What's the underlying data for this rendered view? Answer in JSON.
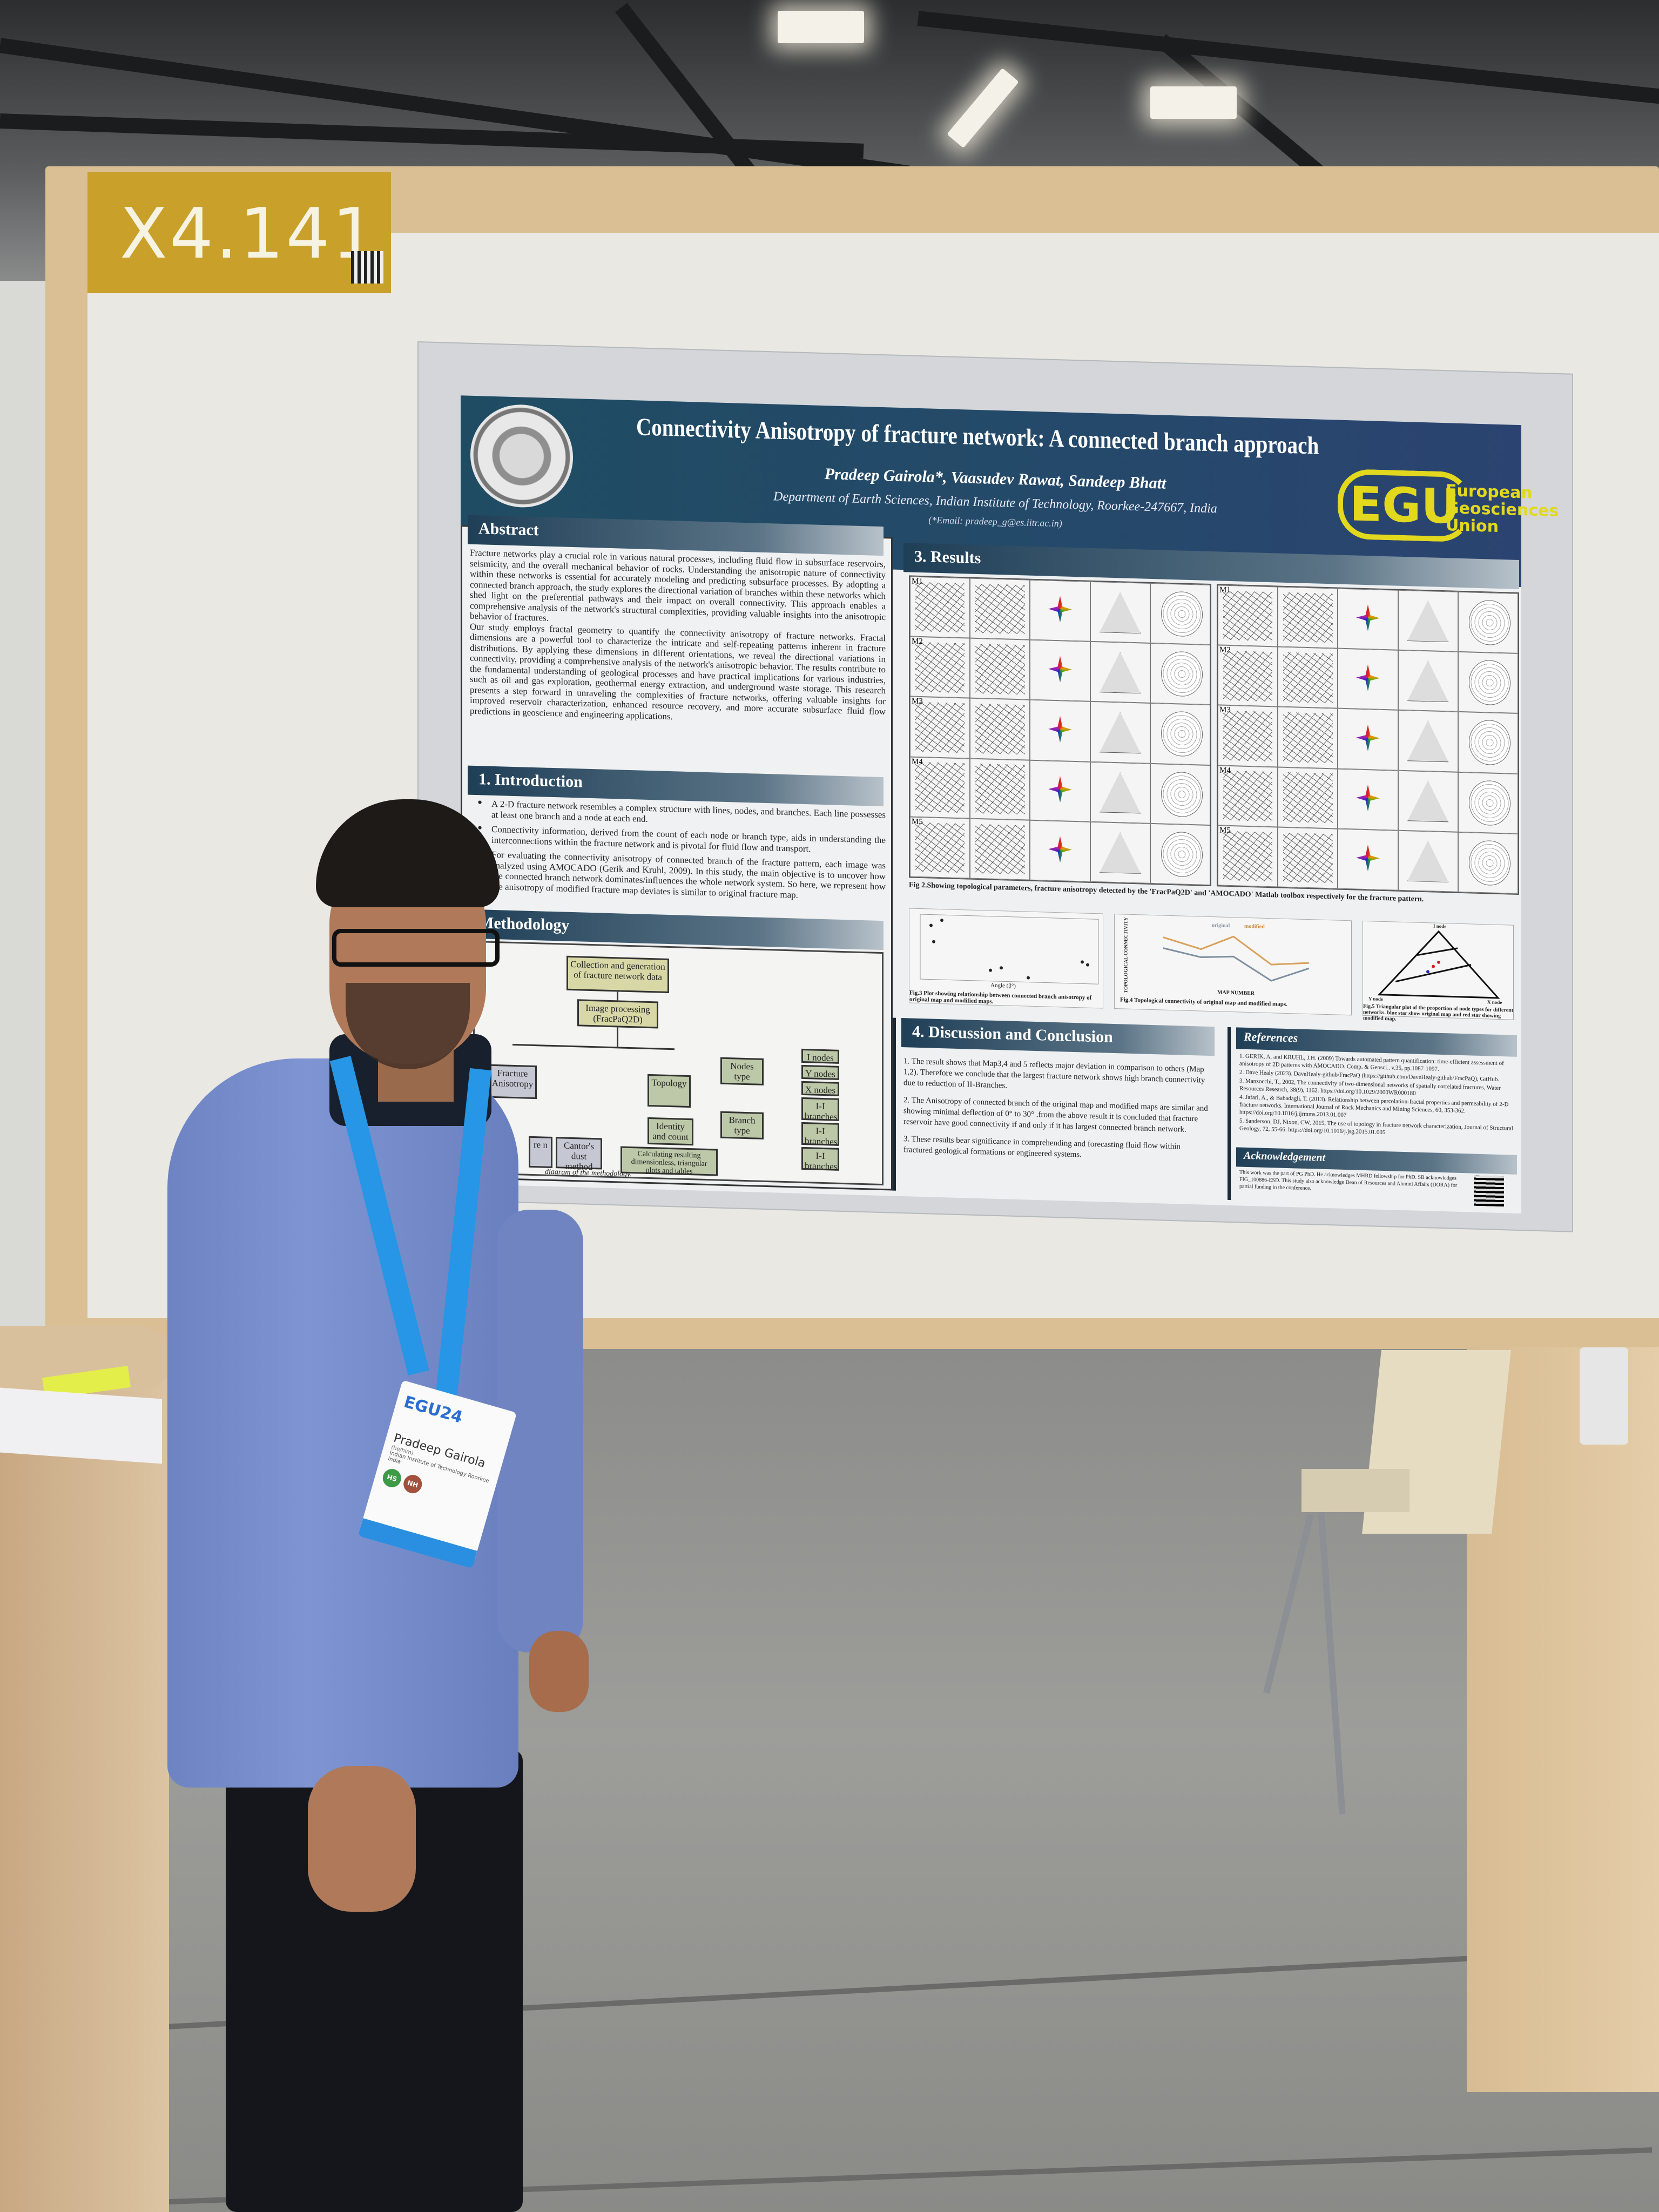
{
  "booth_sign": {
    "label": "X4.141"
  },
  "poster": {
    "title": "Connectivity Anisotropy of fracture network: A connected branch approach",
    "authors": "Pradeep Gairola*, Vaasudev Rawat, Sandeep Bhatt",
    "affiliation": "Department of Earth Sciences, Indian Institute of Technology, Roorkee-247667, India",
    "email": "(*Email: pradeep_g@es.iitr.ac.in)",
    "egu_logo": {
      "mark": "EGU",
      "name": "European Geosciences Union",
      "color": "#e2d81e"
    },
    "abstract": {
      "heading": "Abstract",
      "paragraphs": [
        "Fracture networks play a crucial role in various natural processes, including fluid flow in subsurface reservoirs, seismicity, and the overall mechanical behavior of rocks. Understanding the anisotropic nature of connectivity within these networks is essential for accurately modeling and predicting subsurface processes. By adopting a connected branch approach, the study explores the directional variation of branches within these networks which shed light on the preferential pathways and their impact on overall connectivity. This approach enables a comprehensive analysis of the network's structural complexities, providing valuable insights into the anisotropic behavior of fractures.",
        "Our study employs fractal geometry to quantify the connectivity anisotropy of fracture networks. Fractal dimensions are a powerful tool to characterize the intricate and self-repeating patterns inherent in fracture distributions. By applying these dimensions in different orientations, we reveal the directional variations in connectivity, providing a comprehensive analysis of the network's anisotropic behavior. The results contribute to the fundamental understanding of geological processes and have practical implications for various industries, such as oil and gas exploration, geothermal energy extraction, and underground waste storage. This research presents a step forward in unraveling the complexities of fracture networks, offering valuable insights for improved reservoir characterization, enhanced resource recovery, and more accurate subsurface fluid flow predictions in geoscience and engineering applications."
      ]
    },
    "introduction": {
      "heading": "1. Introduction",
      "bullets": [
        "A 2-D fracture network resembles a complex structure with lines, nodes, and branches. Each line possesses at least one branch and a node at each end.",
        "Connectivity information, derived from the count of each node or branch type, aids in understanding the interconnections within the fracture network and is pivotal for fluid flow and transport.",
        "For evaluating the connectivity anisotropy of connected branch of the fracture pattern, each image was analyzed using AMOCADO (Gerik and Kruhl, 2009). In this study, the main objective is to uncover how the connected branch network dominates/influences the whole network system. So here, we represent how the anisotropy of modified fracture map deviates is similar to original fracture map."
      ]
    },
    "methodology": {
      "heading": "Methodology",
      "boxes": {
        "collection": "Collection and generation of fracture network data",
        "image_processing": "Image processing (FracPaQ2D)",
        "anisotropy": "Fracture Anisotropy",
        "topology": "Topology",
        "nodes_type": "Nodes type",
        "branch_type": "Branch type",
        "i_nodes": "I nodes",
        "y_nodes": "Y nodes",
        "x_nodes": "X nodes",
        "ii_branches": "I-I branches",
        "ic_branches": "I-I branches",
        "cc_branches": "I-I branches",
        "identity": "Identity and count",
        "calculating": "Calculating resulting dimensionless, triangular plots and tables",
        "partial_box": "re n",
        "cantor": "Cantor's dust method"
      },
      "caption": "diagram of the methodology."
    },
    "results": {
      "heading": "3. Results",
      "map_labels": [
        "M1",
        "M2",
        "M3",
        "M4",
        "M5"
      ],
      "fig2_caption": "Fig 2.Showing topological parameters, fracture anisotropy detected by the 'FracPaQ2D' and 'AMOCADO' Matlab toolbox respectively for the fracture pattern.",
      "fig3_caption": "Fig.3 Plot showing relationship between connected branch anisotropy of original map and modified maps.",
      "fig3_xlabel": "Angle (β°)",
      "fig4_caption": "Fig.4 Topological connectivity of original map and modified maps.",
      "fig4_legend": [
        "original",
        "modified"
      ],
      "fig4_ylabel": "TOPOLOGICAL CONNECTIVITY",
      "fig4_xlabel": "MAP NUMBER",
      "fig5_caption": "Fig.5 Triangular plot of the proportion of node types for different networks. blue star show original map and red star showing modified map.",
      "fig5_labels": {
        "top": "I node",
        "left": "Y node",
        "right": "X node"
      }
    },
    "discussion": {
      "heading": "4. Discussion and Conclusion",
      "points": [
        "1. The result shows that Map3,4 and 5 reflects major deviation in comparison to others (Map 1,2). Therefore we conclude that the largest fracture network shows high branch connectivity due to reduction of II-Branches.",
        "2. The Anisotropy of connected branch of the original map and modified maps are similar and showing minimal deflection of 0° to 30° .from the above result it is concluded that fracture reservoir have good connectivity if and only if it has largest connected branch network.",
        "3. These results bear significance in comprehending and forecasting fluid flow within fractured geological formations or engineered systems."
      ]
    },
    "references": {
      "heading": "References",
      "items": [
        "1. GERIK, A. and KRUHL, J.H. (2009) Towards automated pattern quantification: time-efficient assessment of anisotropy of 2D patterns with AMOCADO. Comp. & Geosci., v.35, pp.1087-1097.",
        "2. Dave Healy (2023). DaveHealy-github/FracPaQ (https://github.com/DaveHealy-github/FracPaQ), GitHub.",
        "3. Manzocchi, T., 2002, The connectivity of two-dimensional networks of spatially correlated fractures, Water Resources Research, 38(9), 1162. https://doi.org/10.1029/2000WR000180",
        "4. Jafari, A., & Babadagli, T. (2013). Relationship between percolation-fractal properties and permeability of 2-D fracture networks. International Journal of Rock Mechanics and Mining Sciences, 60, 353-362. https://doi.org/10.1016/j.ijrmms.2013.01.007",
        "5. Sanderson, DJ, Nixon, CW, 2015, The use of topology in fracture network characterization, Journal of Structural Geology, 72, 55-66. https://doi.org/10.1016/j.jsg.2015.01.005"
      ]
    },
    "acknowledgement": {
      "heading": "Acknowledgement",
      "text": "This work was the part of PG PhD. He acknowledges MHRD fellowship for PhD. SB acknowledges FIG_100886-ESD. This study also acknowledge Dean of Resources and Alumni Affairs (DORA) for partial funding in the conference."
    }
  },
  "badge": {
    "event": "EGU24",
    "name": "Pradeep Gairola",
    "role": "(he/him)",
    "institution": "Indian Institute of Technology Roorkee",
    "country": "India",
    "divisions": [
      "HS",
      "NH"
    ]
  }
}
